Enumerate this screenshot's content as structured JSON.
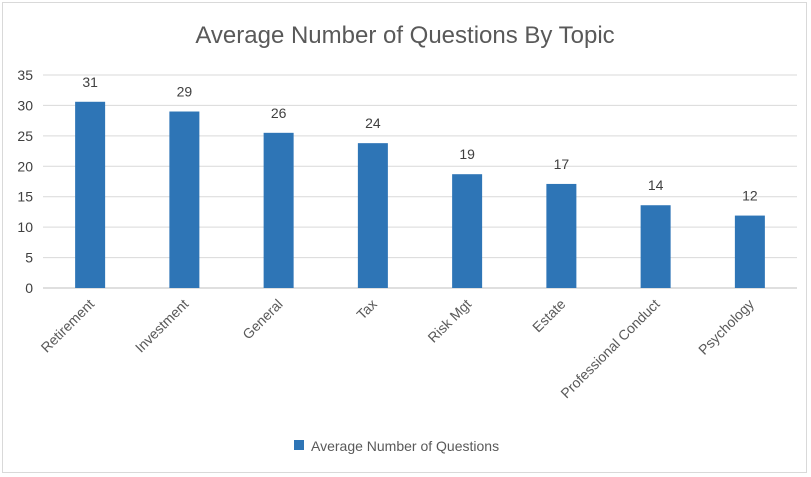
{
  "chart_data": {
    "type": "bar",
    "title": "Average Number of Questions By Topic",
    "xlabel": "",
    "ylabel": "",
    "categories": [
      "Retirement",
      "Investment",
      "General",
      "Tax",
      "Risk Mgt",
      "Estate",
      "Professional Conduct",
      "Psychology"
    ],
    "series": [
      {
        "name": "Average Number of Questions",
        "values": [
          30.6,
          29,
          25.5,
          23.8,
          18.7,
          17.1,
          13.6,
          11.9
        ],
        "data_labels": [
          "31",
          "29",
          "26",
          "24",
          "19",
          "17",
          "14",
          "12"
        ],
        "color": "#2e75b6"
      }
    ],
    "ylim": [
      0,
      35
    ],
    "yticks": [
      "0",
      "5",
      "10",
      "15",
      "20",
      "25",
      "30",
      "35"
    ],
    "grid": true,
    "legend_position": "bottom"
  }
}
